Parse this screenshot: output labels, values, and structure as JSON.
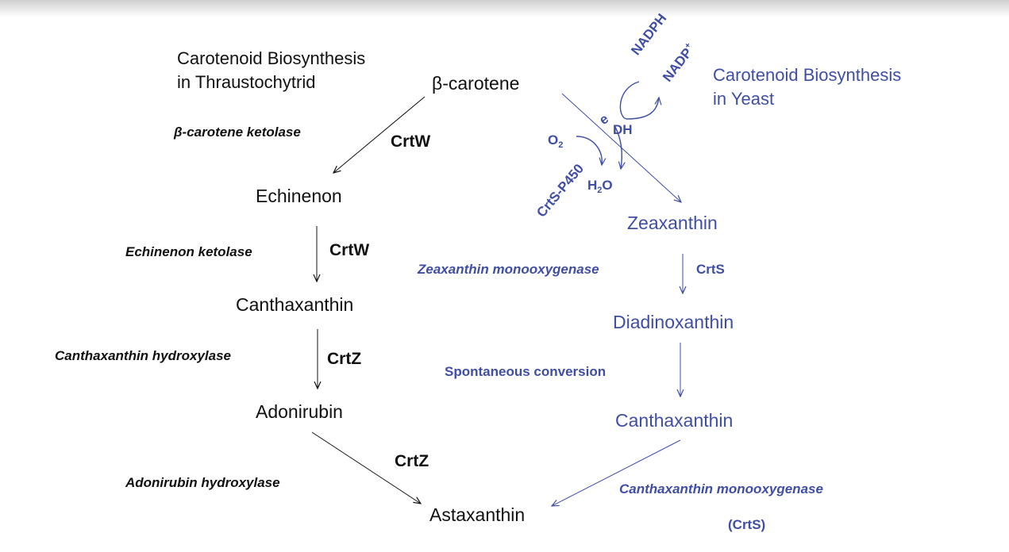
{
  "colors": {
    "black_pathway": "#111111",
    "yeast_pathway": "#3f4ea3"
  },
  "thraustochytrid": {
    "title_line1": "Carotenoid Biosynthesis",
    "title_line2": "in Thraustochytrid",
    "compounds": [
      "β-carotene",
      "Echinenon",
      "Canthaxanthin",
      "Adonirubin",
      "Astaxanthin"
    ],
    "enzymes": [
      "β-carotene ketolase",
      "Echinenon ketolase",
      "Canthaxanthin hydroxylase",
      "Adonirubin hydroxylase"
    ],
    "genes": [
      "CrtW",
      "CrtW",
      "CrtZ",
      "CrtZ"
    ]
  },
  "yeast": {
    "title_line1": "Carotenoid Biosynthesis",
    "title_line2": "in Yeast",
    "compounds": [
      "Zeaxanthin",
      "Diadinoxanthin",
      "Canthaxanthin"
    ],
    "enzymes": [
      "Zeaxanthin monooxygenase",
      "Spontaneous conversion",
      "Canthaxanthin monooxygenase"
    ],
    "genes": [
      "CrtS",
      "(CrtS)"
    ],
    "cofactors": {
      "nadph": "NADPH",
      "nadp_base": "NADP",
      "nadp_sup": "+",
      "o2_base": "O",
      "o2_sub": "2",
      "h2o_h": "H",
      "h2o_sub": "2",
      "h2o_o": "O",
      "electron": "e",
      "dh": "DH",
      "p450": "CrtS-P450"
    }
  }
}
